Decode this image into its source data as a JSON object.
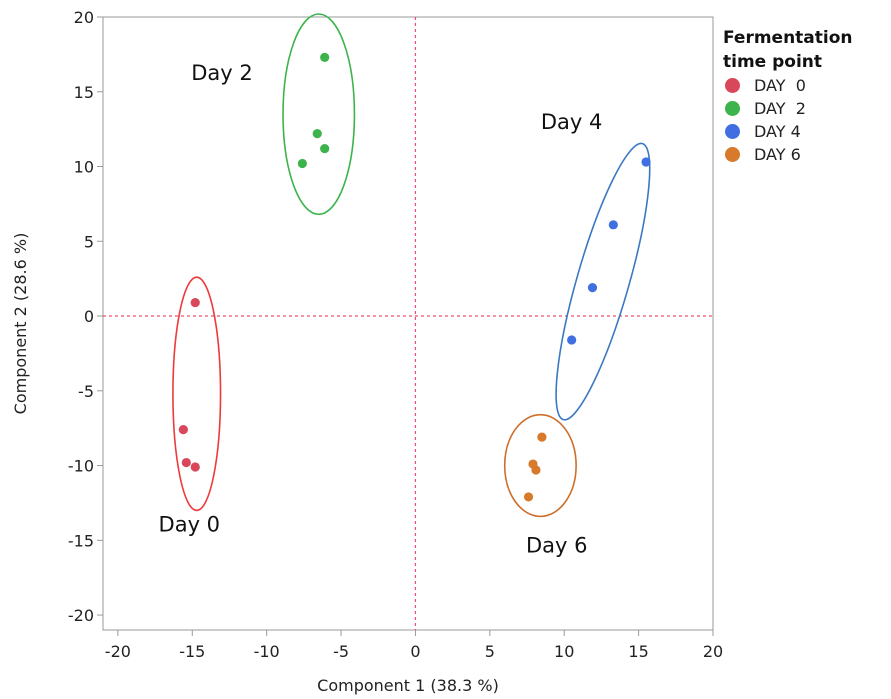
{
  "chart_data": {
    "type": "scatter",
    "xlabel": "Component 1  (38.3 %)",
    "ylabel": "Component 2  (28.6 %)",
    "xlim": [
      -21,
      20
    ],
    "ylim": [
      -21,
      20
    ],
    "xticks": [
      -20,
      -15,
      -10,
      -5,
      0,
      5,
      10,
      15,
      20
    ],
    "yticks": [
      -20,
      -15,
      -10,
      -5,
      0,
      5,
      10,
      15,
      20
    ],
    "reference_lines": {
      "x": 0,
      "y": 0,
      "style": "dashed",
      "color": "#f0506e"
    },
    "grid": false,
    "legend": {
      "title": "Fermentation\ntime point",
      "position": "right",
      "items": [
        {
          "label": "DAY  0",
          "color": "#d9475a"
        },
        {
          "label": "DAY  2",
          "color": "#3cb44b"
        },
        {
          "label": "DAY 4",
          "color": "#3f6fe0"
        },
        {
          "label": "DAY 6",
          "color": "#d77a2c"
        }
      ]
    },
    "series": [
      {
        "name": "DAY  0",
        "color": "#d9475a",
        "ellipse_color": "#ee3a3a",
        "group_label": "Day 0",
        "points": [
          [
            -14.8,
            0.9
          ],
          [
            -15.6,
            -7.6
          ],
          [
            -15.4,
            -9.8
          ],
          [
            -14.8,
            -10.1
          ]
        ],
        "ellipse": {
          "cx": -14.7,
          "cy": -5.2,
          "rx": 1.6,
          "ry": 7.8,
          "angle": 0
        }
      },
      {
        "name": "DAY  2",
        "color": "#3cb44b",
        "ellipse_color": "#3cb44b",
        "group_label": "Day 2",
        "points": [
          [
            -6.1,
            17.3
          ],
          [
            -6.6,
            12.2
          ],
          [
            -6.1,
            11.2
          ],
          [
            -7.6,
            10.2
          ]
        ],
        "ellipse": {
          "cx": -6.5,
          "cy": 13.5,
          "rx": 2.4,
          "ry": 6.7,
          "angle": 0
        }
      },
      {
        "name": "DAY 4",
        "color": "#3f6fe0",
        "ellipse_color": "#3a78c2",
        "group_label": "Day 4",
        "points": [
          [
            15.5,
            10.3
          ],
          [
            13.3,
            6.1
          ],
          [
            11.9,
            1.9
          ],
          [
            10.5,
            -1.6
          ]
        ],
        "ellipse": {
          "cx": 12.6,
          "cy": 2.3,
          "rx": 1.75,
          "ry": 9.6,
          "angle": 16
        }
      },
      {
        "name": "DAY 6",
        "color": "#d77a2c",
        "ellipse_color": "#cd6f2a",
        "group_label": "Day 6",
        "points": [
          [
            8.5,
            -8.1
          ],
          [
            7.9,
            -9.9
          ],
          [
            8.1,
            -10.3
          ],
          [
            7.6,
            -12.1
          ]
        ],
        "ellipse": {
          "cx": 8.4,
          "cy": -10.0,
          "rx": 2.4,
          "ry": 3.4,
          "angle": 0
        }
      }
    ],
    "annotations": [
      {
        "text": "Day 2",
        "x": -13.0,
        "y": 15.8
      },
      {
        "text": "Day 4",
        "x": 10.5,
        "y": 12.5
      },
      {
        "text": "Day 0",
        "x": -15.2,
        "y": -14.4
      },
      {
        "text": "Day 6",
        "x": 9.5,
        "y": -15.8
      }
    ]
  }
}
